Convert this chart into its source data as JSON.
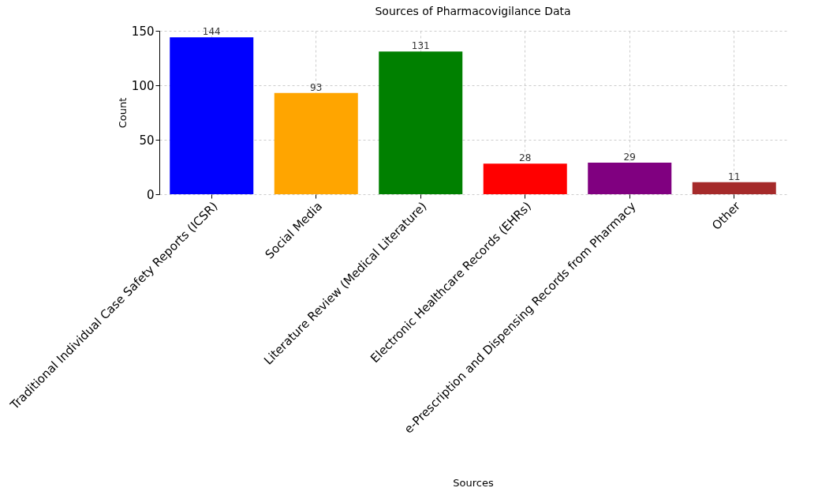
{
  "chart_data": {
    "type": "bar",
    "title": "Sources of Pharmacovigilance Data",
    "xlabel": "Sources",
    "ylabel": "Count",
    "categories": [
      "Traditional Individual Case Safety Reports (ICSR)",
      "Social Media",
      "Literature Review (Medical Literature)",
      "Electronic Healthcare Records (EHRs)",
      "e-Prescription and Dispensing Records from Pharmacy",
      "Other"
    ],
    "values": [
      144,
      93,
      131,
      28,
      29,
      11
    ],
    "colors": [
      "#0000ff",
      "#ffa500",
      "#008000",
      "#ff0000",
      "#800080",
      "#a52a2a"
    ],
    "ylim": [
      0,
      150
    ],
    "yticks": [
      0,
      50,
      100,
      150
    ],
    "grid": true,
    "data_labels": true
  }
}
